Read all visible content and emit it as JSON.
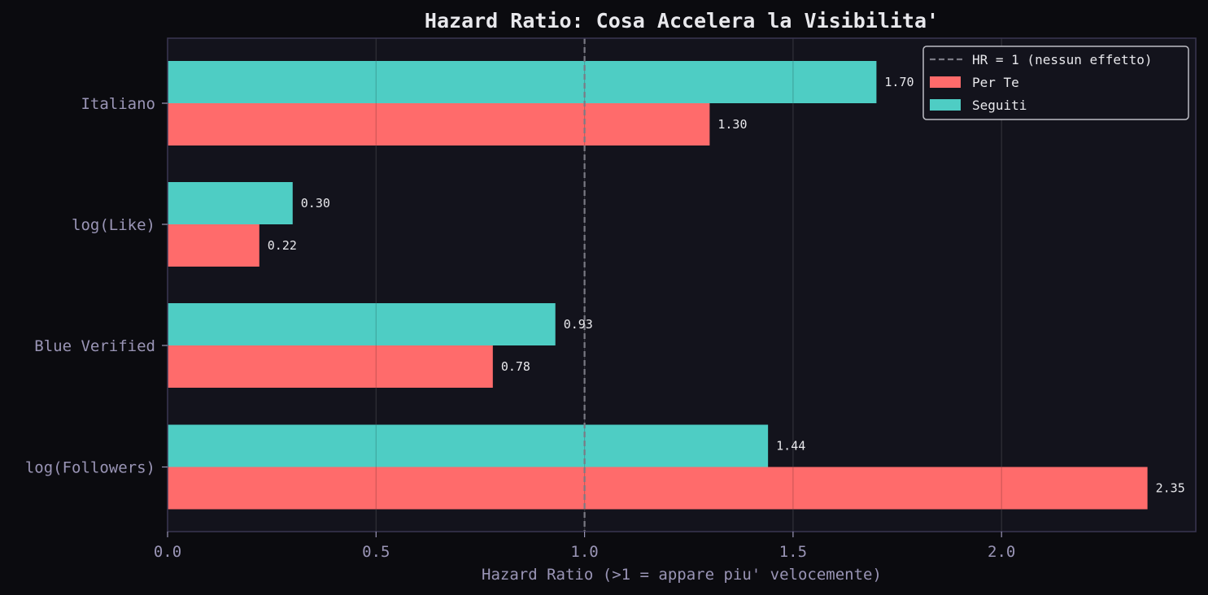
{
  "chart_data": {
    "type": "bar",
    "orientation": "horizontal",
    "title": "Hazard Ratio: Cosa Accelera la Visibilita'",
    "xlabel": "Hazard Ratio (>1 = appare piu' velocemente)",
    "ylabel": "",
    "categories": [
      "log(Followers)",
      "Blue Verified",
      "log(Like)",
      "Italiano"
    ],
    "series": [
      {
        "name": "Per Te",
        "color": "#ff6b6b",
        "values": [
          2.35,
          0.78,
          0.22,
          1.3
        ],
        "labels": [
          "2.35",
          "0.78",
          "0.22",
          "1.30"
        ]
      },
      {
        "name": "Seguiti",
        "color": "#4ecdc4",
        "values": [
          1.44,
          0.93,
          0.3,
          1.7
        ],
        "labels": [
          "1.44",
          "0.93",
          "0.30",
          "1.70"
        ]
      }
    ],
    "xlim": [
      0,
      2.466
    ],
    "xticks": [
      0.0,
      0.5,
      1.0,
      1.5,
      2.0
    ],
    "xtick_labels": [
      "0.0",
      "0.5",
      "1.0",
      "1.5",
      "2.0"
    ],
    "reference_line": {
      "x": 1.0,
      "label": "HR = 1 (nessun effetto)",
      "style": "dashed",
      "color": "#7a7a84"
    },
    "grid": "x",
    "legend_position": "top-right",
    "background": "#13131c",
    "axis_color": "#3a3652"
  }
}
